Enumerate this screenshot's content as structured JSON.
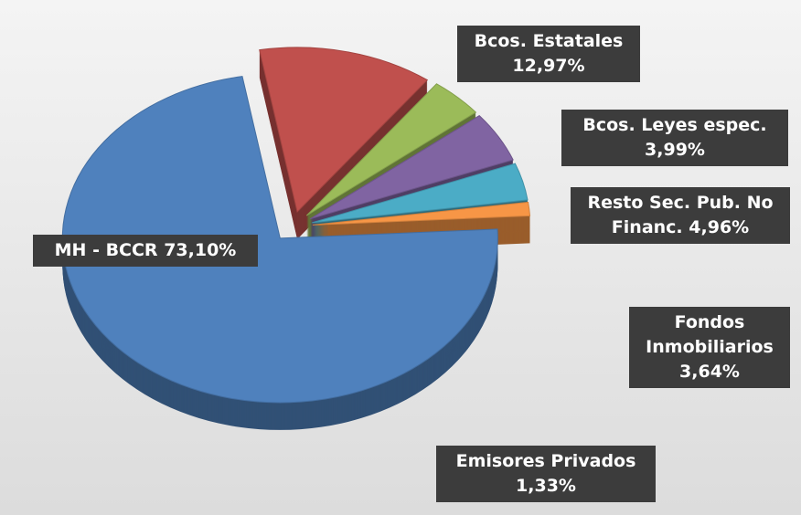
{
  "chart_data": {
    "type": "pie",
    "categories": [
      "MH - BCCR",
      "Bcos. Estatales",
      "Bcos. Leyes espec.",
      "Resto Sec. Pub. No Financ.",
      "Fondos Inmobiliarios",
      "Emisores Privados"
    ],
    "values": [
      73.1,
      12.97,
      3.99,
      4.96,
      3.64,
      1.33
    ],
    "value_labels": [
      "73,10%",
      "12,97%",
      "3,99%",
      "4,96%",
      "3,64%",
      "1,33%"
    ],
    "colors": [
      "#4f81bd",
      "#c0504d",
      "#9bbb59",
      "#8064a2",
      "#4bacc6",
      "#f79646"
    ]
  }
}
